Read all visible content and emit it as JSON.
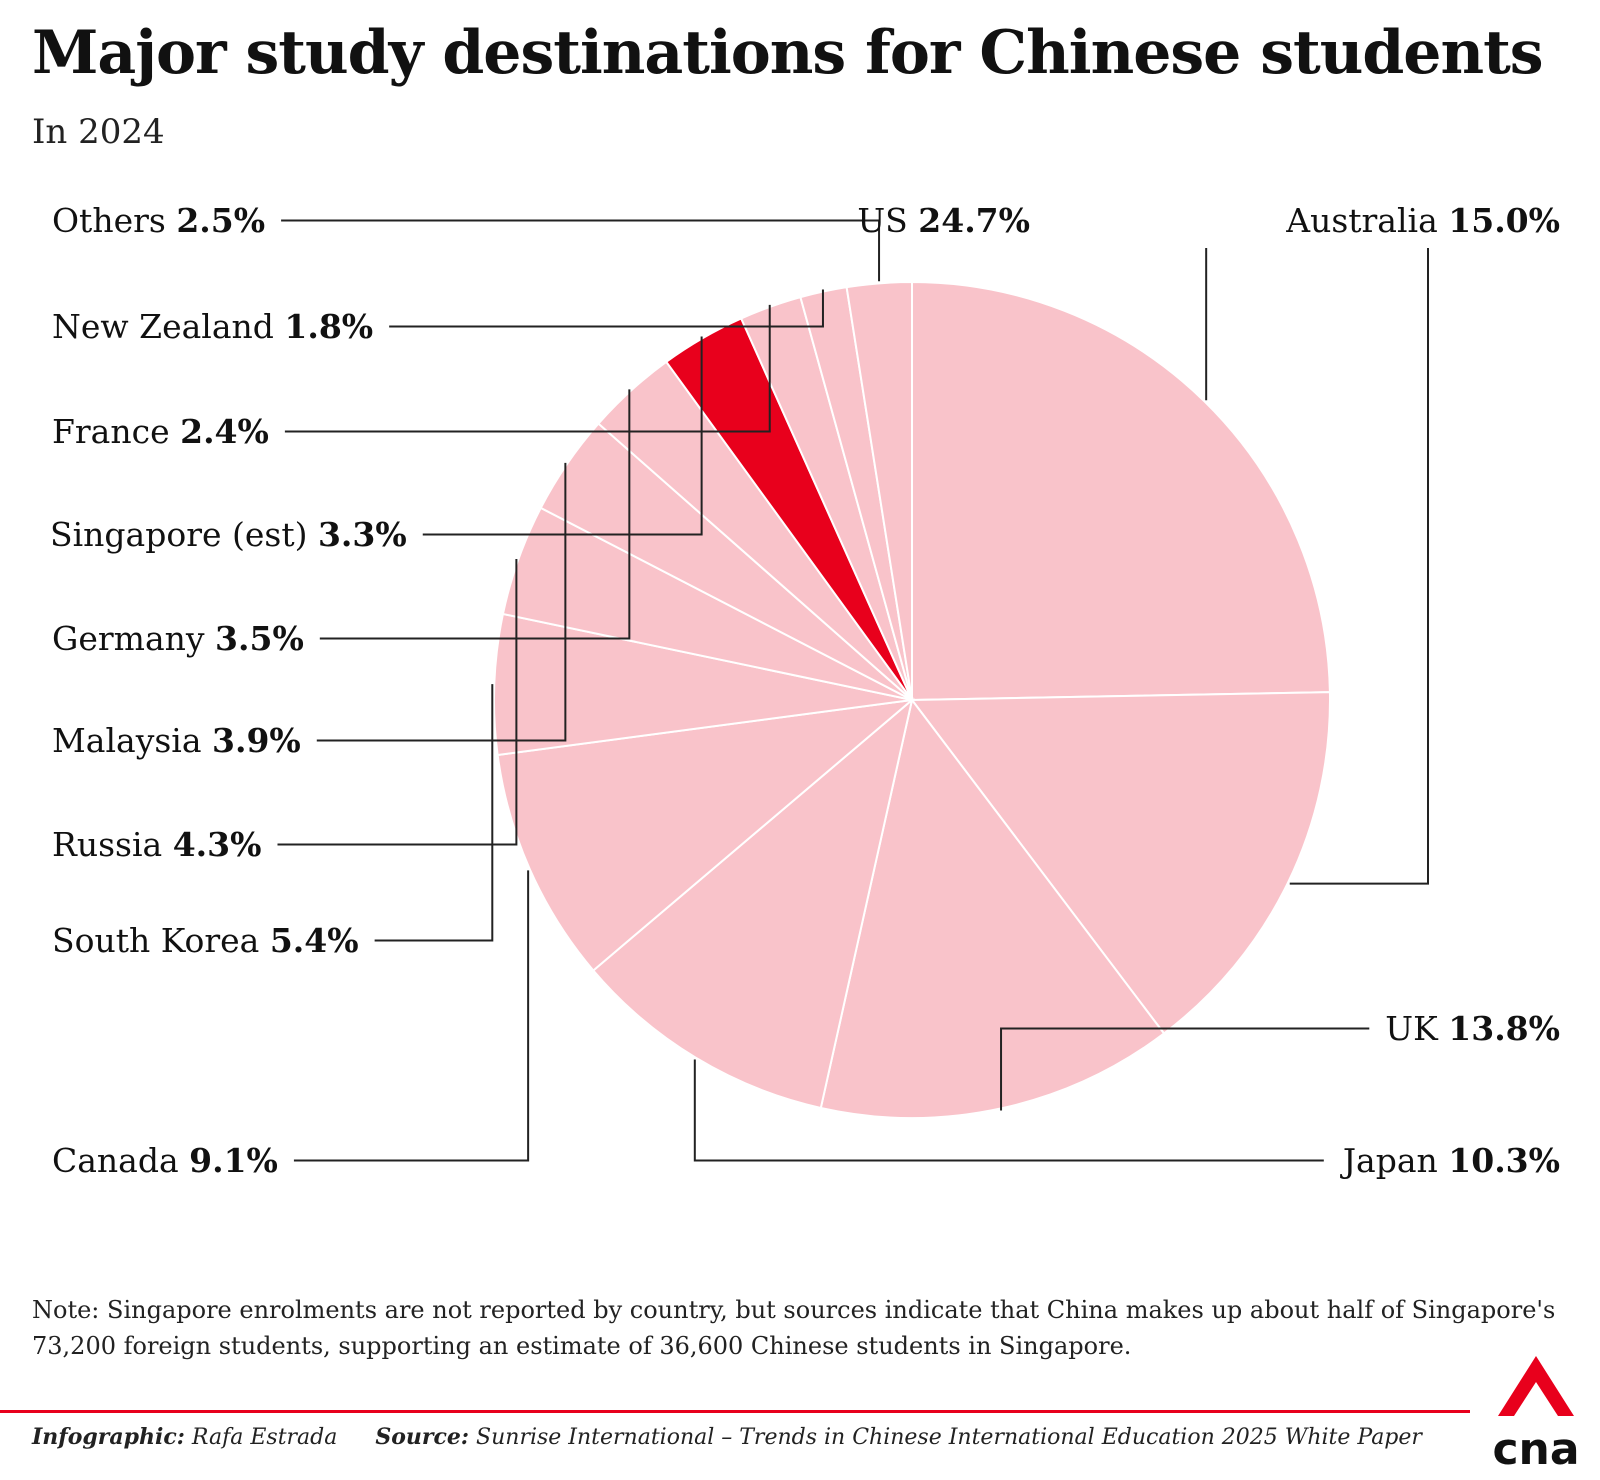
{
  "chart_data": {
    "type": "pie",
    "title": "Major study destinations for Chinese students",
    "subtitle": "In 2024",
    "unit": "%",
    "slices": [
      {
        "label": "US",
        "value": 24.7,
        "color": "#f9c3ca",
        "value_text": "24.7%"
      },
      {
        "label": "Australia",
        "value": 15.0,
        "color": "#f9c3ca",
        "value_text": "15.0%"
      },
      {
        "label": "UK",
        "value": 13.8,
        "color": "#f9c3ca",
        "value_text": "13.8%"
      },
      {
        "label": "Japan",
        "value": 10.3,
        "color": "#f9c3ca",
        "value_text": "10.3%"
      },
      {
        "label": "Canada",
        "value": 9.1,
        "color": "#f9c3ca",
        "value_text": "9.1%"
      },
      {
        "label": "South Korea",
        "value": 5.4,
        "color": "#f9c3ca",
        "value_text": "5.4%"
      },
      {
        "label": "Russia",
        "value": 4.3,
        "color": "#f9c3ca",
        "value_text": "4.3%"
      },
      {
        "label": "Malaysia",
        "value": 3.9,
        "color": "#f9c3ca",
        "value_text": "3.9%"
      },
      {
        "label": "Germany",
        "value": 3.5,
        "color": "#f9c3ca",
        "value_text": "3.5%"
      },
      {
        "label": "Singapore (est)",
        "value": 3.3,
        "color": "#e8001c",
        "value_text": "3.3%"
      },
      {
        "label": "France",
        "value": 2.4,
        "color": "#f9c3ca",
        "value_text": "2.4%"
      },
      {
        "label": "New Zealand",
        "value": 1.8,
        "color": "#f9c3ca",
        "value_text": "1.8%"
      },
      {
        "label": "Others",
        "value": 2.5,
        "color": "#f9c3ca",
        "value_text": "2.5%"
      }
    ],
    "start": "12 o'clock",
    "direction": "clockwise",
    "highlight": "Singapore (est)",
    "colors": {
      "slice": "#f9c3ca",
      "highlight": "#e8001c",
      "divider": "#ffffff",
      "leader": "#222222"
    }
  },
  "note": "Note: Singapore enrolments are not reported by country, but sources indicate that China makes up about half of Singapore's 73,200 foreign students, supporting an estimate of 36,600 Chinese students in Singapore.",
  "footer": {
    "infographic_label": "Infographic:",
    "infographic_name": "Rafa Estrada",
    "source_label": "Source:",
    "source_text": "Sunrise International – Trends in Chinese International Education 2025 White Paper"
  },
  "brand": {
    "logo_text": "cna",
    "logo_icon": "cna-logo-icon",
    "color": "#e8001c",
    "rule_color": "#e8001c"
  }
}
